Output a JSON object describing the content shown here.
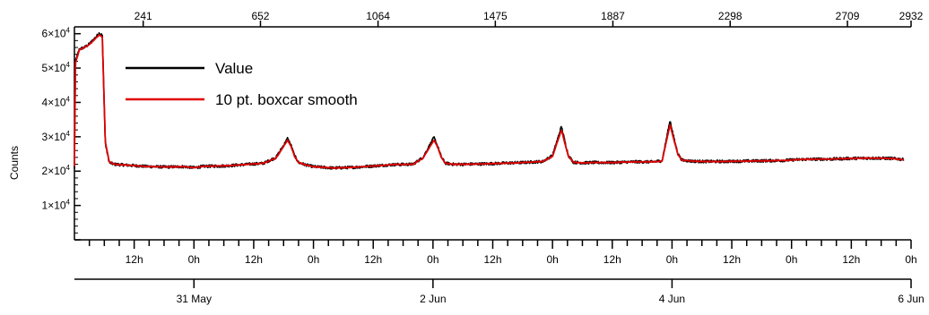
{
  "chart_data": {
    "type": "line",
    "title": "",
    "ylabel": "Counts",
    "ylim": [
      0,
      62000
    ],
    "y_ticks": [
      {
        "value": 10000,
        "mantissa": "1×10",
        "exp": "4"
      },
      {
        "value": 20000,
        "mantissa": "2×10",
        "exp": "4"
      },
      {
        "value": 30000,
        "mantissa": "3×10",
        "exp": "4"
      },
      {
        "value": 40000,
        "mantissa": "4×10",
        "exp": "4"
      },
      {
        "value": 50000,
        "mantissa": "5×10",
        "exp": "4"
      },
      {
        "value": 60000,
        "mantissa": "6×10",
        "exp": "4"
      }
    ],
    "top_axis": {
      "range": [
        0,
        2932
      ],
      "ticks": [
        "241",
        "652",
        "1064",
        "1475",
        "1887",
        "2298",
        "2709",
        "2932"
      ]
    },
    "time_axis": {
      "range_hours": [
        0,
        168
      ],
      "hour_ticks": [
        {
          "h": 12,
          "label": "12h"
        },
        {
          "h": 24,
          "label": "0h"
        },
        {
          "h": 36,
          "label": "12h"
        },
        {
          "h": 48,
          "label": "0h"
        },
        {
          "h": 60,
          "label": "12h"
        },
        {
          "h": 72,
          "label": "0h"
        },
        {
          "h": 84,
          "label": "12h"
        },
        {
          "h": 96,
          "label": "0h"
        },
        {
          "h": 108,
          "label": "12h"
        },
        {
          "h": 120,
          "label": "0h"
        },
        {
          "h": 132,
          "label": "12h"
        },
        {
          "h": 144,
          "label": "0h"
        },
        {
          "h": 156,
          "label": "12h"
        },
        {
          "h": 168,
          "label": "0h"
        }
      ],
      "date_ticks": [
        {
          "h": 24,
          "label": "31 May"
        },
        {
          "h": 72,
          "label": "2 Jun"
        },
        {
          "h": 120,
          "label": "4 Jun"
        },
        {
          "h": 168,
          "label": "6 Jun"
        }
      ]
    },
    "legend": [
      {
        "name": "Value",
        "color": "#000000"
      },
      {
        "name": "10 pt. boxcar smooth",
        "color": "#e00000"
      }
    ],
    "legend_position": "top-left",
    "series": [
      {
        "name": "Value",
        "color": "#000000",
        "x_hours": [
          0,
          0.2,
          1,
          2,
          3,
          4,
          5,
          5.6,
          6.2,
          7,
          8,
          10,
          14,
          18,
          22,
          24,
          26,
          30,
          34,
          38,
          40.5,
          42,
          42.8,
          43.5,
          44.2,
          45,
          46.5,
          48,
          52,
          56,
          60,
          64,
          68,
          70,
          72.2,
          73,
          73.7,
          74.5,
          76,
          78,
          82,
          86,
          90,
          94,
          96,
          97.8,
          98.5,
          99.2,
          100.2,
          102,
          104,
          108,
          112,
          116,
          118,
          119.6,
          120.4,
          121.2,
          122,
          124,
          126,
          130,
          134,
          138,
          142,
          146,
          150,
          152,
          156,
          160,
          164,
          166.5
        ],
        "values": [
          20500,
          52000,
          55500,
          56000,
          57000,
          58500,
          60200,
          59500,
          28000,
          22500,
          22000,
          21800,
          21400,
          21200,
          21300,
          21000,
          21400,
          21500,
          21900,
          22300,
          24000,
          27500,
          29500,
          27500,
          24500,
          22500,
          21800,
          21300,
          20900,
          21100,
          21500,
          21900,
          22000,
          24000,
          29800,
          27000,
          24000,
          22300,
          22000,
          22000,
          22100,
          22300,
          22500,
          22800,
          24500,
          33000,
          28500,
          24500,
          22600,
          22400,
          22500,
          22500,
          22700,
          22700,
          23000,
          34700,
          29500,
          25000,
          23200,
          22900,
          22800,
          22800,
          22900,
          23000,
          23100,
          23400,
          23500,
          23500,
          23700,
          23800,
          23700,
          23400
        ]
      },
      {
        "name": "10 pt. boxcar smooth",
        "color": "#e00000",
        "x_hours": [
          0,
          0.2,
          1,
          2,
          3,
          4,
          5,
          5.6,
          6.2,
          7,
          8,
          10,
          14,
          18,
          22,
          24,
          26,
          30,
          34,
          38,
          40.5,
          42,
          42.8,
          43.5,
          44.2,
          45,
          46.5,
          48,
          52,
          56,
          60,
          64,
          68,
          70,
          72.2,
          73,
          73.7,
          74.5,
          76,
          78,
          82,
          86,
          90,
          94,
          96,
          97.8,
          98.5,
          99.2,
          100.2,
          102,
          104,
          108,
          112,
          116,
          118,
          119.6,
          120.4,
          121.2,
          122,
          124,
          126,
          130,
          134,
          138,
          142,
          146,
          150,
          152,
          156,
          160,
          164,
          166.5
        ],
        "values": [
          21500,
          51500,
          55300,
          56000,
          56800,
          58300,
          59700,
          59000,
          28500,
          22700,
          22000,
          21800,
          21400,
          21200,
          21300,
          21000,
          21400,
          21500,
          21900,
          22300,
          23800,
          27200,
          29000,
          27200,
          24300,
          22500,
          21800,
          21300,
          20900,
          21100,
          21500,
          21900,
          22000,
          23800,
          29000,
          26800,
          23900,
          22300,
          22000,
          22000,
          22100,
          22300,
          22500,
          22800,
          24300,
          32000,
          28000,
          24300,
          22600,
          22400,
          22500,
          22500,
          22700,
          22700,
          22900,
          33500,
          29000,
          24800,
          23200,
          22900,
          22800,
          22800,
          22900,
          23000,
          23100,
          23400,
          23500,
          23500,
          23700,
          23800,
          23700,
          23300
        ]
      }
    ]
  }
}
